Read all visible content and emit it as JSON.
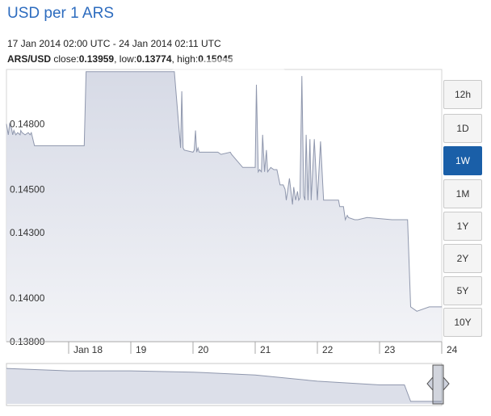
{
  "header": {
    "title": "USD per 1 ARS",
    "date_range": "17 Jan 2014 02:00 UTC - 24 Jan 2014 02:11 UTC",
    "pair": "ARS/USD",
    "close_label": "close:",
    "close_value": "0.13959",
    "low_label": ", low:",
    "low_value": "0.13774",
    "high_label": ", high:",
    "high_value": "0.15045"
  },
  "range_buttons": [
    {
      "label": "12h",
      "active": false
    },
    {
      "label": "1D",
      "active": false
    },
    {
      "label": "1W",
      "active": true
    },
    {
      "label": "1M",
      "active": false
    },
    {
      "label": "1Y",
      "active": false
    },
    {
      "label": "2Y",
      "active": false
    },
    {
      "label": "5Y",
      "active": false
    },
    {
      "label": "10Y",
      "active": false
    }
  ],
  "colors": {
    "line": "#8f97ad",
    "fill": "#dcdfe9",
    "active_button": "#1a5fa8",
    "title": "#2d6cbf"
  },
  "chart_data": {
    "type": "area",
    "title": "USD per 1 ARS",
    "y_axis": {
      "range": [
        0.138,
        0.1505
      ],
      "ticks": [
        0.138,
        0.14,
        0.143,
        0.145,
        0.148
      ],
      "tick_labels": [
        "0.13800",
        "0.14000",
        "0.14300",
        "0.14500",
        "0.14800"
      ]
    },
    "x_axis": {
      "range": [
        0,
        7
      ],
      "ticks": [
        1,
        2,
        3,
        4,
        5,
        6,
        7
      ],
      "tick_labels": [
        "Jan 18",
        "19",
        "20",
        "21",
        "22",
        "23",
        "24"
      ]
    },
    "grid": false,
    "series": [
      {
        "x": [
          0,
          0.03,
          0.05,
          0.08,
          0.1,
          0.12,
          0.15,
          0.18,
          0.22,
          0.23,
          0.25,
          0.3,
          0.35,
          0.38,
          0.4,
          0.45,
          0.5,
          1.0,
          1.25,
          1.28,
          2.7,
          2.8,
          2.82,
          2.84,
          2.86,
          3.0,
          3.02,
          3.04,
          3.06,
          3.08,
          3.1,
          3.4,
          3.45,
          3.6,
          3.62,
          3.8,
          3.85,
          3.95,
          4.0,
          4.02,
          4.05,
          4.07,
          4.1,
          4.12,
          4.15,
          4.18,
          4.2,
          4.25,
          4.3,
          4.35,
          4.4,
          4.45,
          4.48,
          4.5,
          4.55,
          4.6,
          4.62,
          4.65,
          4.68,
          4.7,
          4.72,
          4.75,
          4.78,
          4.8,
          4.82,
          4.85,
          4.88,
          4.9,
          4.95,
          5.0,
          5.05,
          5.1,
          5.2,
          5.3,
          5.32,
          5.34,
          5.36,
          5.4,
          5.42,
          5.45,
          5.48,
          5.5,
          5.6,
          5.65,
          5.8,
          6.2,
          6.3,
          6.32,
          6.34,
          6.36,
          6.38,
          6.4,
          6.45,
          6.5,
          6.6,
          6.8,
          7.0
        ],
        "y": [
          0.148,
          0.1475,
          0.148,
          0.1478,
          0.1475,
          0.1477,
          0.1475,
          0.1476,
          0.1475,
          0.1477,
          0.1476,
          0.1475,
          0.1476,
          0.1475,
          0.1476,
          0.147,
          0.147,
          0.147,
          0.147,
          0.1504,
          0.1504,
          0.1469,
          0.1495,
          0.1469,
          0.1468,
          0.1467,
          0.1468,
          0.1477,
          0.1467,
          0.1469,
          0.1467,
          0.1467,
          0.1466,
          0.1467,
          0.1466,
          0.146,
          0.146,
          0.146,
          0.146,
          0.1498,
          0.1458,
          0.1459,
          0.1458,
          0.1475,
          0.1458,
          0.1468,
          0.1458,
          0.146,
          0.1459,
          0.1459,
          0.1452,
          0.1452,
          0.145,
          0.1445,
          0.1455,
          0.1443,
          0.1451,
          0.1445,
          0.1449,
          0.1445,
          0.1446,
          0.1502,
          0.1447,
          0.1445,
          0.1475,
          0.1445,
          0.1473,
          0.1445,
          0.1473,
          0.1445,
          0.1472,
          0.1445,
          0.1445,
          0.1445,
          0.1445,
          0.1445,
          0.1442,
          0.1442,
          0.1442,
          0.1436,
          0.1438,
          0.1437,
          0.1436,
          0.1436,
          0.1437,
          0.1436,
          0.1436,
          0.1436,
          0.1436,
          0.1436,
          0.1436,
          0.1436,
          0.1436,
          0.1396,
          0.1394,
          0.1396,
          0.1396
        ]
      }
    ],
    "navigator": {
      "type": "area",
      "x": [
        0,
        1,
        2,
        3,
        4,
        5,
        6,
        6.4,
        6.5,
        7
      ],
      "y": [
        0.1476,
        0.147,
        0.147,
        0.1467,
        0.146,
        0.1445,
        0.1436,
        0.1436,
        0.1396,
        0.1396
      ]
    }
  }
}
